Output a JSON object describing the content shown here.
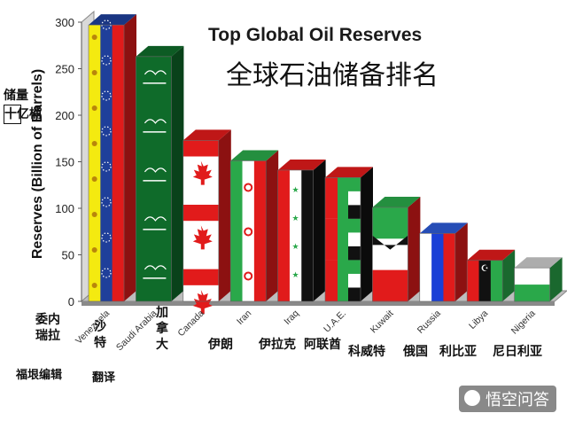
{
  "chart_data": {
    "type": "bar",
    "title": "Top Global Oil Reserves",
    "subtitle": "全球石油储备排名",
    "ylabel": "Reserves (Billion of Barrels)",
    "ylabel_zh": "储量",
    "ylabel_zh_unit": "十亿桶",
    "ylim": [
      0,
      300
    ],
    "yticks": [
      "0",
      "50",
      "100",
      "150",
      "200",
      "250",
      "300"
    ],
    "categories": [
      "Venezuela",
      "Saudi Arabia",
      "Canada",
      "Iran",
      "Iraq",
      "U.A.E.",
      "Kuwait",
      "Russia",
      "Libya",
      "Nigeria"
    ],
    "categories_zh": [
      "委内瑞拉",
      "沙特",
      "加拿大",
      "伊朗",
      "伊拉克",
      "阿联酋",
      "科威特",
      "俄国",
      "利比亚",
      "尼日利亚"
    ],
    "values": [
      297,
      263,
      173,
      151,
      141,
      133,
      101,
      73,
      44,
      36
    ],
    "grid": false,
    "legend": "none"
  },
  "credits": {
    "editor": "福垠编辑",
    "translator": "翻译"
  },
  "watermark": "悟空问答",
  "flag_colors": {
    "venezuela": [
      "#f4ea10",
      "#1f3f9a",
      "#e11b1b"
    ],
    "saudi": "#0f6b2a",
    "canada": "#e11b1b",
    "iran": [
      "#2aa84a",
      "#ffffff",
      "#e11b1b"
    ],
    "iraq": [
      "#e11b1b",
      "#ffffff",
      "#111111"
    ],
    "uae": [
      "#e11b1b",
      "#2aa84a",
      "#ffffff",
      "#111111"
    ],
    "kuwait": [
      "#2aa84a",
      "#ffffff",
      "#e11b1b",
      "#111111"
    ],
    "russia": [
      "#ffffff",
      "#1a3fd6",
      "#e11b1b"
    ],
    "libya": [
      "#e11b1b",
      "#111111",
      "#2aa84a"
    ],
    "nigeria": [
      "#ffffff",
      "#2aa84a"
    ]
  }
}
